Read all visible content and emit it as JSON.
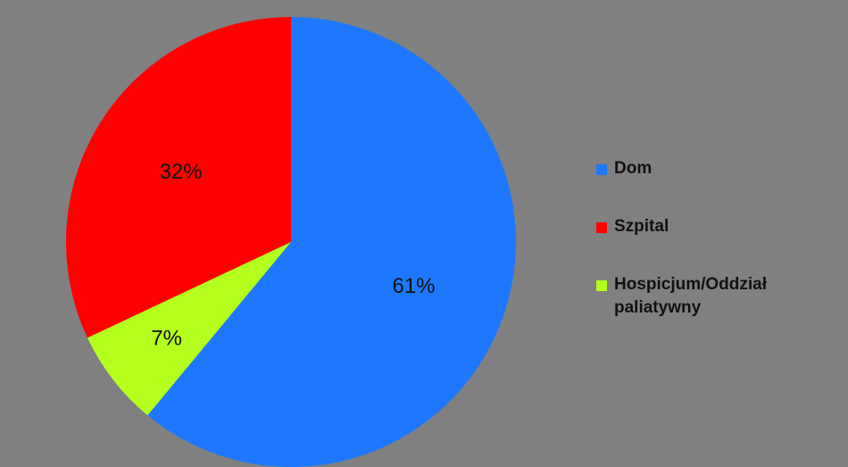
{
  "chart_data": {
    "type": "pie",
    "title": "",
    "slices": [
      {
        "name": "Dom",
        "value": 61,
        "label": "61%",
        "color": "#1e78ff"
      },
      {
        "name": "Hospicjum/Oddział paliatywny",
        "value": 7,
        "label": "7%",
        "color": "#b4ff1e"
      },
      {
        "name": "Szpital",
        "value": 32,
        "label": "32%",
        "color": "#ff0000"
      }
    ],
    "legend": {
      "position": "right",
      "order": [
        "Dom",
        "Szpital",
        "Hospicjum/Oddział paliatywny"
      ]
    },
    "start_angle": "top",
    "direction": "clockwise",
    "background": "#808080"
  }
}
